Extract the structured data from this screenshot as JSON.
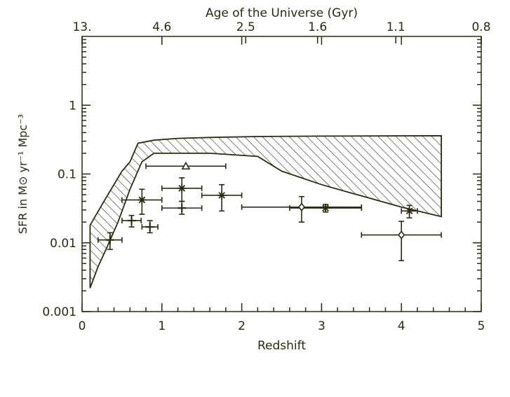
{
  "chart_data": {
    "type": "scatter",
    "xlabel": "Redshift",
    "ylabel": "SFR in M⊙ yr⁻¹ Mpc⁻³",
    "top_axis_label": "Age of the Universe (Gyr)",
    "xlim": [
      0,
      5
    ],
    "ylim": [
      0.001,
      10
    ],
    "y_scale": "log",
    "x_ticks": [
      "0",
      "1",
      "2",
      "3",
      "4",
      "5"
    ],
    "y_ticks": [
      {
        "value": 0.001,
        "label": "0.001"
      },
      {
        "value": 0.01,
        "label": "0.01"
      },
      {
        "value": 0.1,
        "label": "0.1"
      },
      {
        "value": 1,
        "label": "1"
      }
    ],
    "top_ticks": [
      {
        "z": 0.0,
        "label": "13."
      },
      {
        "z": 1.0,
        "label": "4.6"
      },
      {
        "z": 2.05,
        "label": "2.5"
      },
      {
        "z": 2.95,
        "label": "1.6"
      },
      {
        "z": 3.93,
        "label": "1.1"
      },
      {
        "z": 5.0,
        "label": "0.8"
      }
    ],
    "band": {
      "upper": [
        [
          0.1,
          0.018
        ],
        [
          0.3,
          0.045
        ],
        [
          0.5,
          0.11
        ],
        [
          0.6,
          0.15
        ],
        [
          0.7,
          0.28
        ],
        [
          0.9,
          0.31
        ],
        [
          1.2,
          0.33
        ],
        [
          1.6,
          0.34
        ],
        [
          2.2,
          0.35
        ],
        [
          3.0,
          0.355
        ],
        [
          4.5,
          0.36
        ]
      ],
      "lower": [
        [
          4.5,
          0.024
        ],
        [
          4.0,
          0.033
        ],
        [
          3.5,
          0.048
        ],
        [
          3.0,
          0.07
        ],
        [
          2.5,
          0.11
        ],
        [
          2.2,
          0.18
        ],
        [
          1.6,
          0.2
        ],
        [
          1.2,
          0.2
        ],
        [
          0.9,
          0.2
        ],
        [
          0.75,
          0.15
        ],
        [
          0.6,
          0.06
        ],
        [
          0.45,
          0.02
        ],
        [
          0.3,
          0.008
        ],
        [
          0.2,
          0.0045
        ],
        [
          0.1,
          0.0022
        ]
      ]
    },
    "series": [
      {
        "marker": "plus",
        "points": [
          {
            "x": 0.35,
            "y": 0.011,
            "xerr": [
              0.15,
              0.15
            ],
            "yerr": [
              0.003,
              0.003
            ]
          },
          {
            "x": 0.62,
            "y": 0.021,
            "xerr": [
              0.12,
              0.12
            ],
            "yerr": [
              0.004,
              0.004
            ]
          },
          {
            "x": 0.85,
            "y": 0.017,
            "xerr": [
              0.1,
              0.1
            ],
            "yerr": [
              0.003,
              0.004
            ]
          },
          {
            "x": 1.25,
            "y": 0.032,
            "xerr": [
              0.25,
              0.25
            ],
            "yerr": [
              0.006,
              0.008
            ]
          }
        ]
      },
      {
        "marker": "asterisk",
        "points": [
          {
            "x": 0.75,
            "y": 0.042,
            "xerr": [
              0.25,
              0.25
            ],
            "yerr": [
              0.016,
              0.018
            ]
          },
          {
            "x": 1.25,
            "y": 0.062,
            "xerr": [
              0.25,
              0.25
            ],
            "yerr": [
              0.022,
              0.026
            ]
          },
          {
            "x": 1.75,
            "y": 0.049,
            "xerr": [
              0.25,
              0.25
            ],
            "yerr": [
              0.02,
              0.021
            ]
          },
          {
            "x": 3.05,
            "y": 0.032,
            "xerr": [
              0.45,
              0.45
            ],
            "yerr": [
              0.004,
              0.004
            ]
          },
          {
            "x": 4.1,
            "y": 0.029,
            "xerr": [
              0.1,
              0.1
            ],
            "yerr": [
              0.006,
              0.006
            ]
          }
        ]
      },
      {
        "marker": "triangle",
        "points": [
          {
            "x": 1.3,
            "y": 0.13,
            "xerr": [
              0.5,
              0.5
            ],
            "yerr": [
              0,
              0
            ]
          }
        ]
      },
      {
        "marker": "diamond",
        "points": [
          {
            "x": 2.75,
            "y": 0.033,
            "xerr": [
              0.75,
              0.75
            ],
            "yerr": [
              0.013,
              0.014
            ]
          },
          {
            "x": 4.0,
            "y": 0.013,
            "xerr": [
              0.5,
              0.5
            ],
            "yerr": [
              0.0075,
              0.0075
            ]
          }
        ]
      }
    ]
  }
}
